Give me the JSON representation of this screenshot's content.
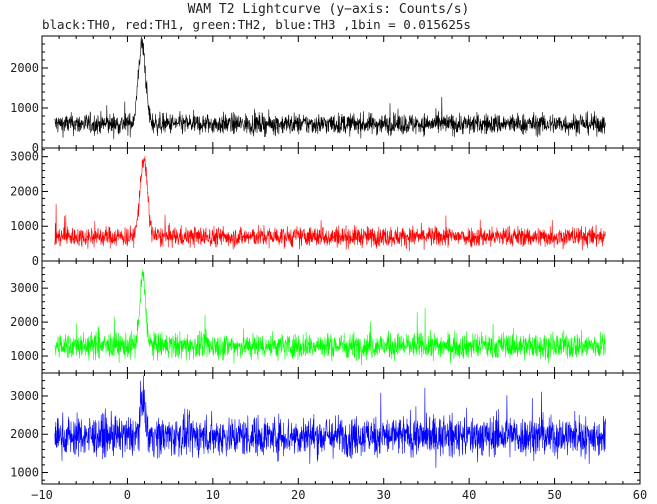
{
  "title": "WAM T2 Lightcurve (y−axis: Counts/s)",
  "subtitle": "black:TH0, red:TH1, green:TH2, blue:TH3 ,1bin = 0.015625s",
  "chart_data": [
    {
      "type": "line",
      "panel": "TH0",
      "color": "#000000",
      "x_range": [
        -8.5,
        56
      ],
      "xlim": [
        -10,
        60
      ],
      "ylim": [
        0,
        2800
      ],
      "yticks": [
        0,
        1000,
        2000
      ],
      "ytick_labels": [
        "0",
        "1000",
        "2000"
      ],
      "baseline": 600,
      "noise_amplitude": 260,
      "peak": {
        "x": 1.7,
        "y": 2750,
        "width": 0.6
      }
    },
    {
      "type": "line",
      "panel": "TH1",
      "color": "#ff0000",
      "x_range": [
        -8.5,
        56
      ],
      "xlim": [
        -10,
        60
      ],
      "ylim": [
        0,
        3250
      ],
      "yticks": [
        0,
        1000,
        2000,
        3000
      ],
      "ytick_labels": [
        "0",
        "1000",
        "2000",
        "3000"
      ],
      "baseline": 700,
      "noise_amplitude": 290,
      "peak": {
        "x": 1.9,
        "y": 3100,
        "width": 0.6
      }
    },
    {
      "type": "line",
      "panel": "TH2",
      "color": "#00ff00",
      "x_range": [
        -8.5,
        56
      ],
      "xlim": [
        -10,
        60
      ],
      "ylim": [
        500,
        3800
      ],
      "yticks": [
        1000,
        2000,
        3000
      ],
      "ytick_labels": [
        "1000",
        "2000",
        "3000"
      ],
      "baseline": 1300,
      "noise_amplitude": 380,
      "peak": {
        "x": 1.8,
        "y": 3600,
        "width": 0.45
      }
    },
    {
      "type": "line",
      "panel": "TH3",
      "color": "#0000ff",
      "x_range": [
        -8.5,
        56
      ],
      "xlim": [
        -10,
        60
      ],
      "ylim": [
        700,
        3600
      ],
      "yticks": [
        1000,
        2000,
        3000
      ],
      "ytick_labels": [
        "1000",
        "2000",
        "3000"
      ],
      "baseline": 1950,
      "noise_amplitude": 520,
      "peak": {
        "x": 1.8,
        "y": 3300,
        "width": 0.4
      }
    }
  ],
  "x_axis": {
    "ticks": [
      -10,
      0,
      10,
      20,
      30,
      40,
      50,
      60
    ],
    "tick_labels": [
      "−10",
      "0",
      "10",
      "20",
      "30",
      "40",
      "50",
      "60"
    ]
  }
}
